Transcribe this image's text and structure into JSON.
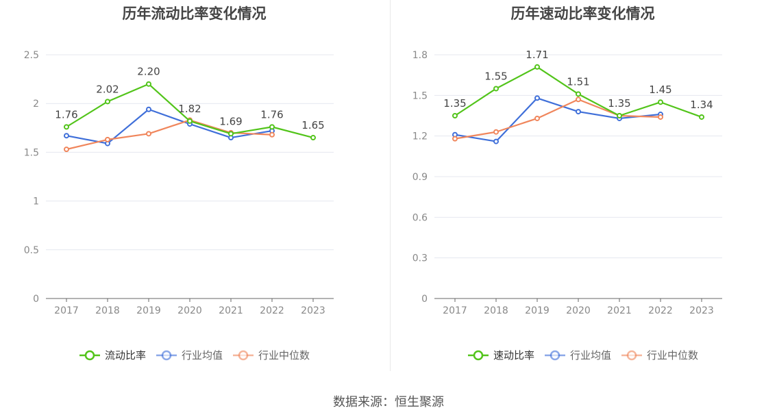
{
  "source_label": "数据来源：恒生聚源",
  "chart_data": [
    {
      "type": "line",
      "title": "历年流动比率变化情况",
      "categories": [
        "2017",
        "2018",
        "2019",
        "2020",
        "2021",
        "2022",
        "2023"
      ],
      "ylim": [
        0,
        2.5
      ],
      "yticks": [
        "0",
        "0.5",
        "1",
        "1.5",
        "2",
        "2.5"
      ],
      "grid": true,
      "legend_position": "bottom",
      "series": [
        {
          "name": "流动比率",
          "color": "#52c41a",
          "values": [
            1.76,
            2.02,
            2.2,
            1.82,
            1.69,
            1.76,
            1.65
          ],
          "labels": [
            "1.76",
            "2.02",
            "2.20",
            "1.82",
            "1.69",
            "1.76",
            "1.65"
          ]
        },
        {
          "name": "行业均值",
          "color": "#3f6fd9",
          "values": [
            1.67,
            1.59,
            1.94,
            1.79,
            1.65,
            1.72,
            null
          ]
        },
        {
          "name": "行业中位数",
          "color": "#f0865c",
          "values": [
            1.53,
            1.63,
            1.69,
            1.83,
            1.7,
            1.68,
            null
          ]
        }
      ]
    },
    {
      "type": "line",
      "title": "历年速动比率变化情况",
      "categories": [
        "2017",
        "2018",
        "2019",
        "2020",
        "2021",
        "2022",
        "2023"
      ],
      "ylim": [
        0,
        1.8
      ],
      "yticks": [
        "0",
        "0.3",
        "0.6",
        "0.9",
        "1.2",
        "1.5",
        "1.8"
      ],
      "grid": true,
      "legend_position": "bottom",
      "series": [
        {
          "name": "速动比率",
          "color": "#52c41a",
          "values": [
            1.35,
            1.55,
            1.71,
            1.51,
            1.35,
            1.45,
            1.34
          ],
          "labels": [
            "1.35",
            "1.55",
            "1.71",
            "1.51",
            "1.35",
            "1.45",
            "1.34"
          ]
        },
        {
          "name": "行业均值",
          "color": "#3f6fd9",
          "values": [
            1.21,
            1.16,
            1.48,
            1.38,
            1.33,
            1.36,
            null
          ]
        },
        {
          "name": "行业中位数",
          "color": "#f0865c",
          "values": [
            1.18,
            1.23,
            1.33,
            1.47,
            1.35,
            1.34,
            null
          ]
        }
      ]
    }
  ]
}
